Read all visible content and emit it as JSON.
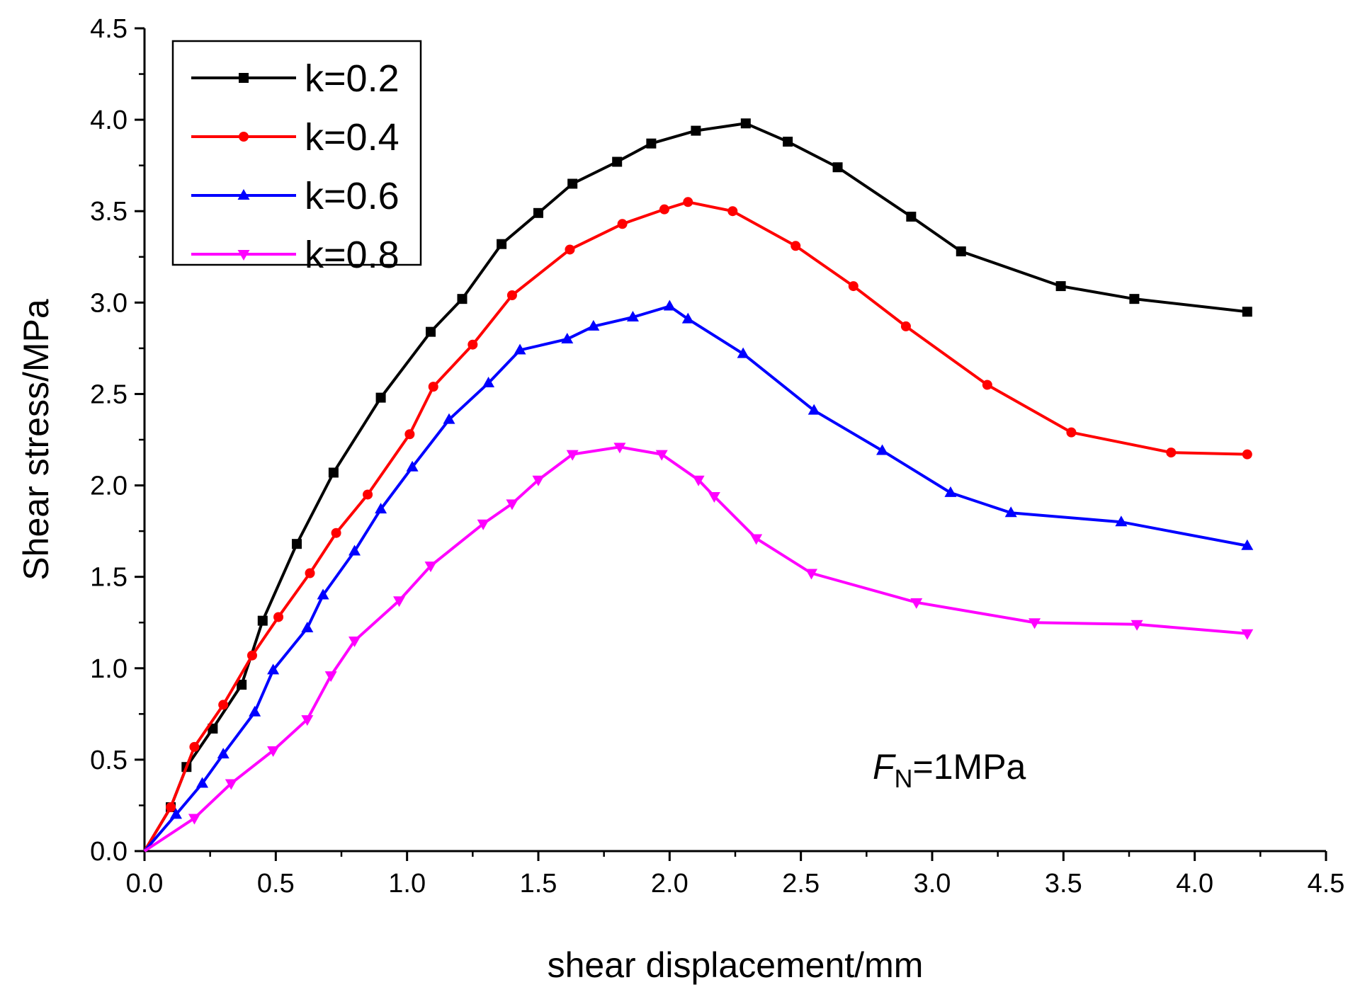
{
  "chart_data": {
    "type": "line",
    "title": "",
    "xlabel": "shear displacement/mm",
    "ylabel": "Shear stress/MPa",
    "xlim": [
      0,
      4.5
    ],
    "ylim": [
      0,
      4.5
    ],
    "x_ticks": [
      "0.0",
      "0.5",
      "1.0",
      "1.5",
      "2.0",
      "2.5",
      "3.0",
      "3.5",
      "4.0",
      "4.5"
    ],
    "y_ticks": [
      "0.0",
      "0.5",
      "1.0",
      "1.5",
      "2.0",
      "2.5",
      "3.0",
      "3.5",
      "4.0",
      "4.5"
    ],
    "legend_position": "top-left",
    "annotation": {
      "italic": "F",
      "subscript": "N",
      "rest": "=1MPa"
    },
    "series": [
      {
        "name": "k=0.2",
        "color": "#000000",
        "marker": "square",
        "x": [
          0,
          0.1,
          0.16,
          0.26,
          0.37,
          0.45,
          0.58,
          0.72,
          0.9,
          1.09,
          1.21,
          1.36,
          1.5,
          1.63,
          1.8,
          1.93,
          2.1,
          2.29,
          2.45,
          2.64,
          2.92,
          3.11,
          3.49,
          3.77,
          4.2
        ],
        "y": [
          0,
          0.24,
          0.46,
          0.67,
          0.91,
          1.26,
          1.68,
          2.07,
          2.48,
          2.84,
          3.02,
          3.32,
          3.49,
          3.65,
          3.77,
          3.87,
          3.94,
          3.98,
          3.88,
          3.74,
          3.47,
          3.28,
          3.09,
          3.02,
          2.95
        ]
      },
      {
        "name": "k=0.4",
        "color": "#ff0000",
        "marker": "circle",
        "x": [
          0,
          0.1,
          0.19,
          0.3,
          0.41,
          0.51,
          0.63,
          0.73,
          0.85,
          1.01,
          1.1,
          1.25,
          1.4,
          1.62,
          1.82,
          1.98,
          2.07,
          2.24,
          2.48,
          2.7,
          2.9,
          3.21,
          3.53,
          3.91,
          4.2
        ],
        "y": [
          0,
          0.24,
          0.57,
          0.8,
          1.07,
          1.28,
          1.52,
          1.74,
          1.95,
          2.28,
          2.54,
          2.77,
          3.04,
          3.29,
          3.43,
          3.51,
          3.55,
          3.5,
          3.31,
          3.09,
          2.87,
          2.55,
          2.29,
          2.18,
          2.17
        ]
      },
      {
        "name": "k=0.6",
        "color": "#0000ff",
        "marker": "triangle-up",
        "x": [
          0,
          0.12,
          0.22,
          0.3,
          0.42,
          0.49,
          0.62,
          0.68,
          0.8,
          0.9,
          1.02,
          1.16,
          1.31,
          1.43,
          1.61,
          1.71,
          1.86,
          2.0,
          2.07,
          2.28,
          2.55,
          2.81,
          3.07,
          3.3,
          3.72,
          4.2
        ],
        "y": [
          0,
          0.2,
          0.37,
          0.53,
          0.76,
          0.99,
          1.22,
          1.4,
          1.64,
          1.87,
          2.1,
          2.36,
          2.56,
          2.74,
          2.8,
          2.87,
          2.92,
          2.98,
          2.91,
          2.72,
          2.41,
          2.19,
          1.96,
          1.85,
          1.8,
          1.67
        ]
      },
      {
        "name": "k=0.8",
        "color": "#ff00ff",
        "marker": "triangle-down",
        "x": [
          0,
          0.19,
          0.33,
          0.49,
          0.62,
          0.71,
          0.8,
          0.97,
          1.09,
          1.29,
          1.4,
          1.5,
          1.63,
          1.81,
          1.97,
          2.11,
          2.17,
          2.33,
          2.54,
          2.94,
          3.39,
          3.78,
          4.2
        ],
        "y": [
          0,
          0.18,
          0.37,
          0.55,
          0.72,
          0.96,
          1.15,
          1.37,
          1.56,
          1.79,
          1.9,
          2.03,
          2.17,
          2.21,
          2.17,
          2.03,
          1.94,
          1.71,
          1.52,
          1.36,
          1.25,
          1.24,
          1.19
        ]
      }
    ]
  }
}
